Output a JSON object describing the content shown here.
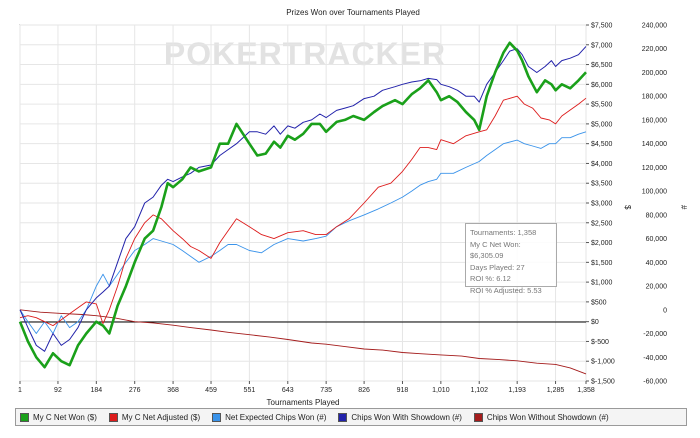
{
  "watermark": "POKERTRACKER",
  "info_box": [
    "Tournaments: 1,358",
    "My C Net Won: $6,305.09",
    "Days Played: 27",
    "ROI %: 6.12",
    "ROI % Adjusted: 5.53"
  ],
  "chart_data": {
    "type": "line",
    "title": "Prizes Won over Tournaments Played",
    "xlabel": "Tournaments Played",
    "y_left_label": "$",
    "y_right_label": "#",
    "xlim": [
      1,
      1358
    ],
    "ylim_left": [
      -1500,
      7500
    ],
    "ylim_right": [
      -60000,
      240000
    ],
    "x_ticks": [
      "1",
      "92",
      "184",
      "276",
      "368",
      "459",
      "551",
      "643",
      "735",
      "826",
      "918",
      "1,010",
      "1,102",
      "1,193",
      "1,285",
      "1,358"
    ],
    "x_tick_values": [
      1,
      92,
      184,
      276,
      368,
      459,
      551,
      643,
      735,
      826,
      918,
      1010,
      1102,
      1193,
      1285,
      1358
    ],
    "y_left_ticks": [
      "$7,500",
      "$7,000",
      "$6,500",
      "$6,000",
      "$5,500",
      "$5,000",
      "$4,500",
      "$4,000",
      "$3,500",
      "$3,000",
      "$2,500",
      "$2,000",
      "$1,500",
      "$1,000",
      "$500",
      "$0",
      "$-500",
      "$-1,000",
      "$-1,500"
    ],
    "y_left_tick_values": [
      7500,
      7000,
      6500,
      6000,
      5500,
      5000,
      4500,
      4000,
      3500,
      3000,
      2500,
      2000,
      1500,
      1000,
      500,
      0,
      -500,
      -1000,
      -1500
    ],
    "y_right_ticks": [
      "240,000",
      "220,000",
      "200,000",
      "180,000",
      "160,000",
      "140,000",
      "120,000",
      "100,000",
      "80,000",
      "60,000",
      "40,000",
      "20,000",
      "0",
      "-20,000",
      "-40,000",
      "-60,000"
    ],
    "y_right_tick_values": [
      240000,
      220000,
      200000,
      180000,
      160000,
      140000,
      120000,
      100000,
      80000,
      60000,
      40000,
      20000,
      0,
      -20000,
      -40000,
      -60000
    ],
    "grid": true,
    "legend_position": "bottom",
    "series": [
      {
        "name": "My C Net Won ($)",
        "axis": "left",
        "color": "#1aa01a",
        "width": 2.6,
        "x": [
          1,
          20,
          40,
          60,
          80,
          100,
          120,
          140,
          160,
          184,
          200,
          215,
          235,
          255,
          276,
          300,
          320,
          340,
          355,
          368,
          390,
          410,
          430,
          459,
          480,
          500,
          520,
          551,
          570,
          590,
          610,
          625,
          643,
          660,
          680,
          700,
          720,
          735,
          760,
          780,
          800,
          826,
          850,
          870,
          900,
          918,
          940,
          960,
          980,
          1000,
          1010,
          1030,
          1050,
          1070,
          1090,
          1102,
          1120,
          1140,
          1160,
          1175,
          1193,
          1205,
          1220,
          1240,
          1260,
          1275,
          1285,
          1300,
          1320,
          1340,
          1358
        ],
        "y": [
          0,
          -500,
          -900,
          -1150,
          -800,
          -1000,
          -1100,
          -600,
          -300,
          0,
          -100,
          -300,
          400,
          900,
          1500,
          2100,
          2300,
          2900,
          3500,
          3400,
          3600,
          3900,
          3800,
          3900,
          4500,
          4500,
          5000,
          4500,
          4200,
          4250,
          4550,
          4400,
          4700,
          4600,
          4750,
          5000,
          5000,
          4800,
          5050,
          5100,
          5200,
          5100,
          5300,
          5450,
          5600,
          5500,
          5750,
          5900,
          6100,
          5800,
          5600,
          5700,
          5550,
          5300,
          5100,
          4850,
          5700,
          6300,
          6800,
          7050,
          6850,
          6600,
          6200,
          5800,
          6100,
          6000,
          5850,
          6000,
          5900,
          6100,
          6305
        ]
      },
      {
        "name": "My C Net Adjusted ($)",
        "axis": "left",
        "color": "#dd1c1c",
        "width": 0.9,
        "x": [
          1,
          20,
          40,
          60,
          80,
          100,
          120,
          140,
          160,
          184,
          200,
          215,
          235,
          255,
          276,
          300,
          320,
          340,
          368,
          390,
          410,
          430,
          459,
          480,
          500,
          520,
          551,
          580,
          610,
          643,
          680,
          710,
          735,
          760,
          790,
          826,
          860,
          890,
          918,
          940,
          960,
          980,
          1000,
          1010,
          1040,
          1070,
          1102,
          1120,
          1140,
          1160,
          1193,
          1210,
          1230,
          1250,
          1270,
          1285,
          1300,
          1320,
          1340,
          1358
        ],
        "y": [
          100,
          150,
          100,
          0,
          -100,
          50,
          200,
          350,
          500,
          450,
          -50,
          300,
          900,
          1600,
          2100,
          2500,
          2700,
          2600,
          2300,
          2100,
          1900,
          1800,
          1600,
          2000,
          2300,
          2600,
          2400,
          2200,
          2100,
          2250,
          2300,
          2200,
          2200,
          2400,
          2600,
          3000,
          3400,
          3500,
          3800,
          4100,
          4400,
          4400,
          4350,
          4600,
          4500,
          4700,
          4800,
          4850,
          5200,
          5600,
          5700,
          5500,
          5400,
          5150,
          5100,
          5000,
          5200,
          5350,
          5500,
          5650
        ]
      },
      {
        "name": "Net Expected Chips Won (#)",
        "axis": "right",
        "color": "#3a93ea",
        "width": 0.9,
        "x": [
          1,
          20,
          40,
          60,
          80,
          100,
          120,
          140,
          160,
          184,
          200,
          215,
          235,
          255,
          276,
          300,
          320,
          340,
          368,
          390,
          410,
          430,
          459,
          480,
          500,
          520,
          551,
          580,
          610,
          643,
          680,
          710,
          735,
          760,
          790,
          826,
          860,
          890,
          918,
          940,
          960,
          980,
          1000,
          1010,
          1040,
          1070,
          1102,
          1120,
          1140,
          1160,
          1193,
          1210,
          1230,
          1250,
          1270,
          1285,
          1300,
          1320,
          1340,
          1358
        ],
        "y": [
          0,
          -10000,
          -20000,
          -10000,
          -20000,
          -5000,
          -15000,
          -10000,
          0,
          20000,
          30000,
          20000,
          30000,
          40000,
          50000,
          55000,
          60000,
          58000,
          55000,
          50000,
          45000,
          40000,
          45000,
          50000,
          55000,
          55000,
          50000,
          48000,
          55000,
          60000,
          58000,
          60000,
          62000,
          70000,
          75000,
          80000,
          85000,
          90000,
          95000,
          100000,
          105000,
          108000,
          110000,
          115000,
          115000,
          120000,
          125000,
          130000,
          135000,
          140000,
          143000,
          140000,
          138000,
          136000,
          140000,
          140000,
          145000,
          145000,
          148000,
          150000
        ]
      },
      {
        "name": "Chips Won With Showdown (#)",
        "axis": "right",
        "color": "#2222aa",
        "width": 1.0,
        "x": [
          1,
          20,
          40,
          60,
          80,
          100,
          120,
          140,
          160,
          184,
          200,
          215,
          235,
          255,
          276,
          300,
          320,
          340,
          355,
          368,
          390,
          410,
          430,
          459,
          480,
          500,
          520,
          551,
          570,
          590,
          610,
          625,
          643,
          660,
          680,
          700,
          720,
          735,
          760,
          780,
          800,
          826,
          850,
          870,
          900,
          918,
          940,
          960,
          980,
          1000,
          1010,
          1030,
          1050,
          1070,
          1090,
          1102,
          1120,
          1140,
          1160,
          1175,
          1193,
          1205,
          1220,
          1240,
          1260,
          1275,
          1285,
          1300,
          1320,
          1340,
          1358
        ],
        "y": [
          0,
          -15000,
          -30000,
          -35000,
          -20000,
          -30000,
          -25000,
          -15000,
          0,
          10000,
          15000,
          20000,
          40000,
          60000,
          70000,
          90000,
          95000,
          105000,
          110000,
          108000,
          112000,
          115000,
          120000,
          122000,
          130000,
          135000,
          140000,
          150000,
          150000,
          148000,
          155000,
          148000,
          155000,
          153000,
          158000,
          160000,
          165000,
          162000,
          168000,
          170000,
          172000,
          178000,
          180000,
          185000,
          188000,
          190000,
          192000,
          193000,
          195000,
          194000,
          190000,
          188000,
          185000,
          180000,
          180000,
          175000,
          190000,
          200000,
          210000,
          218000,
          220000,
          215000,
          205000,
          200000,
          205000,
          210000,
          205000,
          210000,
          212000,
          215000,
          222000
        ]
      },
      {
        "name": "Chips Won Without Showdown (#)",
        "axis": "right",
        "color": "#a41c1c",
        "width": 0.9,
        "x": [
          1,
          50,
          100,
          150,
          184,
          230,
          276,
          320,
          368,
          410,
          459,
          500,
          551,
          600,
          643,
          700,
          735,
          780,
          826,
          870,
          918,
          960,
          1010,
          1060,
          1102,
          1150,
          1193,
          1240,
          1285,
          1320,
          1358
        ],
        "y": [
          0,
          -2000,
          -3000,
          -4000,
          -5000,
          -7000,
          -10000,
          -11000,
          -13000,
          -15000,
          -17000,
          -19000,
          -21000,
          -23000,
          -25000,
          -28000,
          -29000,
          -31000,
          -33000,
          -34000,
          -36000,
          -37000,
          -38000,
          -39000,
          -41000,
          -42000,
          -43000,
          -45000,
          -46000,
          -49000,
          -54000
        ]
      }
    ]
  }
}
